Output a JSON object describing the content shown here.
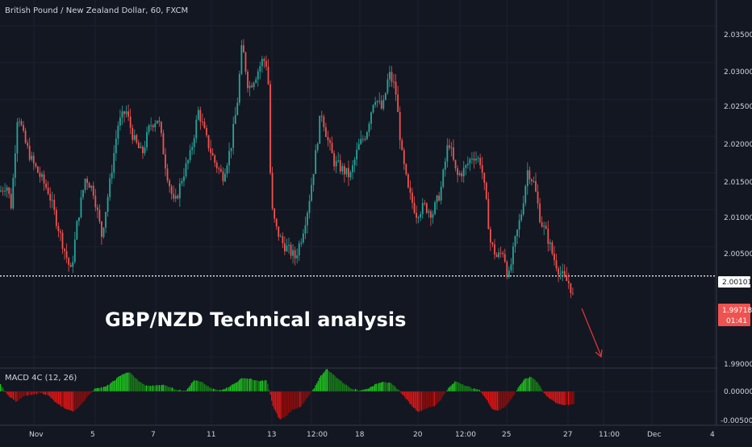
{
  "header": {
    "symbol_title": "British Pound / New Zealand Dollar, 60, FXCM"
  },
  "overlay": {
    "headline": "GBP/NZD Technical analysis"
  },
  "price_panel": {
    "price_axis_labels": [
      "2.03500",
      "2.03000",
      "2.02500",
      "2.02000",
      "2.01500",
      "2.01000",
      "2.00500",
      "1.99000"
    ],
    "tags": {
      "level_price": "2.00101",
      "last_price": "1.99718",
      "countdown": "01:41"
    }
  },
  "macd_panel": {
    "label": "MACD 4C (12, 26)",
    "axis_labels": [
      "0.00000",
      "-0.00500"
    ]
  },
  "time_axis": {
    "labels": [
      "Nov",
      "5",
      "7",
      "11",
      "13",
      "12:00",
      "18",
      "20",
      "12:00",
      "25",
      "27",
      "11:00",
      "Dec",
      "4"
    ]
  },
  "colors": {
    "background": "#131722",
    "up_candle": "#26a69a",
    "down_candle": "#ef5350",
    "macd_green_strong": "#1fc31f",
    "macd_green_weak": "#157c15",
    "macd_red_strong": "#e01515",
    "macd_red_weak": "#8b0d0d",
    "last_price_tag": "#ef5350",
    "arrow": "#e53935",
    "level_line": "#ffffff"
  },
  "chart_data": {
    "type": "candlestick",
    "title": "British Pound / New Zealand Dollar, 60, FXCM",
    "ylim": [
      1.9885,
      2.0385
    ],
    "price_ticks": [
      2.035,
      2.03,
      2.025,
      2.02,
      2.015,
      2.01,
      2.005,
      1.99
    ],
    "horizontal_level": 2.00101,
    "last_price": 1.99718,
    "close_path": [
      [
        0,
        2.0125
      ],
      [
        8,
        2.0135
      ],
      [
        14,
        2.0105
      ],
      [
        22,
        2.0235
      ],
      [
        30,
        2.0195
      ],
      [
        40,
        2.0165
      ],
      [
        50,
        2.0145
      ],
      [
        60,
        2.0125
      ],
      [
        70,
        2.0085
      ],
      [
        80,
        2.0045
      ],
      [
        88,
        2.0015
      ],
      [
        96,
        2.0085
      ],
      [
        106,
        2.0145
      ],
      [
        116,
        2.0125
      ],
      [
        126,
        2.0065
      ],
      [
        136,
        2.0135
      ],
      [
        146,
        2.0215
      ],
      [
        156,
        2.0235
      ],
      [
        166,
        2.0195
      ],
      [
        176,
        2.0175
      ],
      [
        186,
        2.0215
      ],
      [
        196,
        2.0225
      ],
      [
        206,
        2.0155
      ],
      [
        216,
        2.0105
      ],
      [
        226,
        2.0145
      ],
      [
        236,
        2.0175
      ],
      [
        246,
        2.0235
      ],
      [
        256,
        2.0195
      ],
      [
        266,
        2.0165
      ],
      [
        276,
        2.0145
      ],
      [
        286,
        2.0185
      ],
      [
        294,
        2.0245
      ],
      [
        300,
        2.0325
      ],
      [
        308,
        2.0265
      ],
      [
        318,
        2.0285
      ],
      [
        326,
        2.0305
      ],
      [
        332,
        2.0295
      ],
      [
        336,
        2.0105
      ],
      [
        342,
        2.0075
      ],
      [
        350,
        2.0055
      ],
      [
        358,
        2.0045
      ],
      [
        366,
        2.0035
      ],
      [
        374,
        2.0065
      ],
      [
        382,
        2.0105
      ],
      [
        390,
        2.0165
      ],
      [
        398,
        2.0235
      ],
      [
        406,
        2.0195
      ],
      [
        414,
        2.0165
      ],
      [
        424,
        2.0155
      ],
      [
        434,
        2.0145
      ],
      [
        444,
        2.0185
      ],
      [
        454,
        2.0205
      ],
      [
        464,
        2.0255
      ],
      [
        474,
        2.0235
      ],
      [
        482,
        2.0285
      ],
      [
        490,
        2.0265
      ],
      [
        498,
        2.0175
      ],
      [
        506,
        2.0125
      ],
      [
        516,
        2.0095
      ],
      [
        526,
        2.0105
      ],
      [
        536,
        2.0095
      ],
      [
        546,
        2.0125
      ],
      [
        556,
        2.0195
      ],
      [
        566,
        2.0145
      ],
      [
        576,
        2.0155
      ],
      [
        586,
        2.0175
      ],
      [
        596,
        2.0165
      ],
      [
        602,
        2.0115
      ],
      [
        608,
        2.0055
      ],
      [
        616,
        2.0035
      ],
      [
        624,
        2.0045
      ],
      [
        630,
        2.0005
      ],
      [
        638,
        2.0055
      ],
      [
        646,
        2.0095
      ],
      [
        654,
        2.0155
      ],
      [
        662,
        2.0135
      ],
      [
        670,
        2.0085
      ],
      [
        678,
        2.0065
      ],
      [
        686,
        2.0035
      ],
      [
        694,
        2.0015
      ],
      [
        700,
        2.0005
      ],
      [
        706,
        2.0
      ],
      [
        712,
        1.99718
      ]
    ],
    "macd_histogram": [
      [
        0,
        0.3
      ],
      [
        10,
        -0.2
      ],
      [
        20,
        -0.45
      ],
      [
        30,
        -0.2
      ],
      [
        40,
        -0.15
      ],
      [
        50,
        -0.05
      ],
      [
        60,
        -0.2
      ],
      [
        70,
        -0.55
      ],
      [
        80,
        -0.75
      ],
      [
        90,
        -0.9
      ],
      [
        100,
        -0.6
      ],
      [
        108,
        -0.2
      ],
      [
        118,
        0.15
      ],
      [
        130,
        0.2
      ],
      [
        140,
        0.45
      ],
      [
        150,
        0.75
      ],
      [
        160,
        0.85
      ],
      [
        170,
        0.5
      ],
      [
        180,
        0.25
      ],
      [
        190,
        0.25
      ],
      [
        200,
        0.3
      ],
      [
        210,
        0.2
      ],
      [
        220,
        0.05
      ],
      [
        230,
        0.05
      ],
      [
        240,
        0.5
      ],
      [
        250,
        0.4
      ],
      [
        260,
        0.15
      ],
      [
        270,
        0.05
      ],
      [
        280,
        0.15
      ],
      [
        290,
        0.35
      ],
      [
        300,
        0.6
      ],
      [
        310,
        0.55
      ],
      [
        320,
        0.45
      ],
      [
        330,
        0.5
      ],
      [
        338,
        -0.7
      ],
      [
        346,
        -1.25
      ],
      [
        354,
        -1.1
      ],
      [
        362,
        -0.8
      ],
      [
        372,
        -0.7
      ],
      [
        380,
        -0.3
      ],
      [
        388,
        0.1
      ],
      [
        396,
        0.65
      ],
      [
        404,
        1.0
      ],
      [
        414,
        0.7
      ],
      [
        424,
        0.4
      ],
      [
        434,
        0.15
      ],
      [
        444,
        0.05
      ],
      [
        454,
        0.1
      ],
      [
        464,
        0.3
      ],
      [
        474,
        0.45
      ],
      [
        484,
        0.35
      ],
      [
        494,
        0.05
      ],
      [
        502,
        -0.3
      ],
      [
        510,
        -0.65
      ],
      [
        518,
        -0.9
      ],
      [
        528,
        -0.75
      ],
      [
        538,
        -0.65
      ],
      [
        546,
        -0.35
      ],
      [
        554,
        0.1
      ],
      [
        564,
        0.45
      ],
      [
        574,
        0.3
      ],
      [
        584,
        0.15
      ],
      [
        594,
        0.05
      ],
      [
        602,
        -0.35
      ],
      [
        610,
        -0.8
      ],
      [
        618,
        -0.85
      ],
      [
        626,
        -0.65
      ],
      [
        634,
        -0.3
      ],
      [
        642,
        0.2
      ],
      [
        650,
        0.55
      ],
      [
        658,
        0.65
      ],
      [
        666,
        0.4
      ],
      [
        674,
        -0.1
      ],
      [
        682,
        -0.35
      ],
      [
        690,
        -0.55
      ],
      [
        700,
        -0.6
      ],
      [
        712,
        -0.55
      ]
    ]
  }
}
